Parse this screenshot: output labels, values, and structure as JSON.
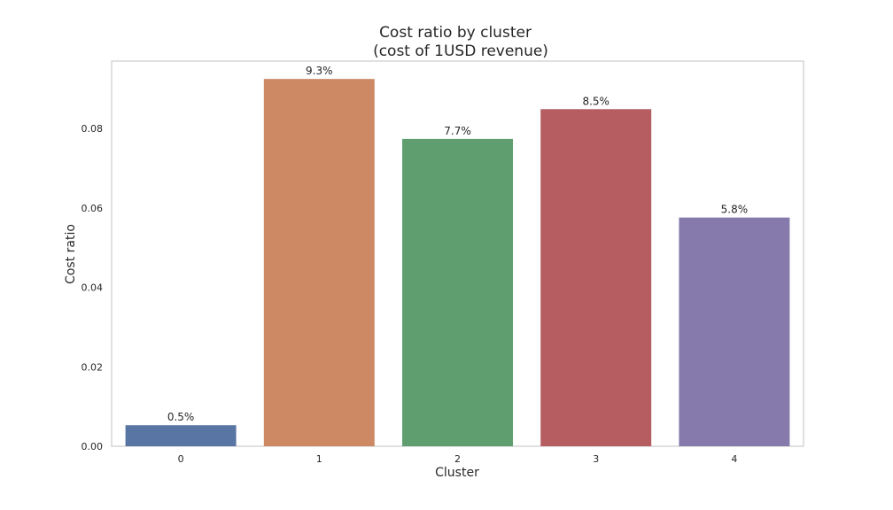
{
  "chart_data": {
    "type": "bar",
    "title_line1": "Cost ratio by cluster",
    "title_line2": "(cost of 1USD revenue)",
    "xlabel": "Cluster",
    "ylabel": "Cost ratio",
    "categories": [
      "0",
      "1",
      "2",
      "3",
      "4"
    ],
    "values": [
      0.0053,
      0.0925,
      0.0774,
      0.0849,
      0.0576
    ],
    "data_labels": [
      "0.5%",
      "9.3%",
      "7.7%",
      "8.5%",
      "5.8%"
    ],
    "colors": [
      "#5875a4",
      "#cc8963",
      "#5f9e6e",
      "#b55d60",
      "#857aab"
    ],
    "ylim": [
      0,
      0.097
    ],
    "yticks": [
      0.0,
      0.02,
      0.04,
      0.06,
      0.08
    ],
    "ytick_labels": [
      "0.00",
      "0.02",
      "0.04",
      "0.06",
      "0.08"
    ],
    "grid": false,
    "legend": "none"
  }
}
